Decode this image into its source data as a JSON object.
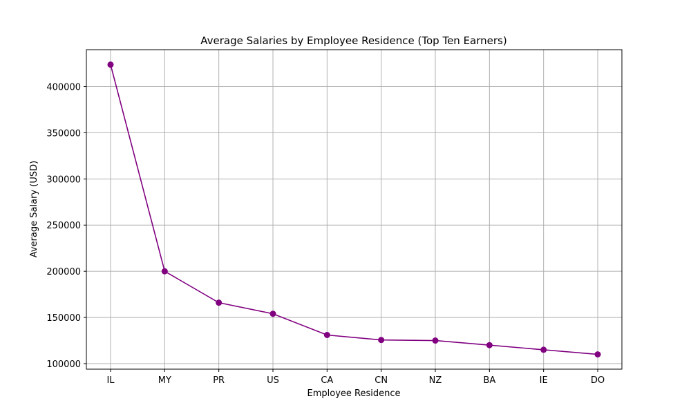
{
  "chart_data": {
    "type": "line",
    "title": "Average Salaries by Employee Residence (Top Ten Earners)",
    "xlabel": "Employee Residence",
    "ylabel": "Average Salary (USD)",
    "categories": [
      "IL",
      "MY",
      "PR",
      "US",
      "CA",
      "CN",
      "NZ",
      "BA",
      "IE",
      "DO"
    ],
    "series": [
      {
        "values": [
          423834,
          200000,
          166000,
          154000,
          131000,
          125600,
          125000,
          120000,
          115000,
          110000
        ],
        "color": "#800080",
        "marker": "circle"
      }
    ],
    "yticks": [
      100000,
      150000,
      200000,
      250000,
      300000,
      350000,
      400000
    ],
    "ytick_labels": [
      "100000",
      "150000",
      "200000",
      "250000",
      "300000",
      "350000",
      "400000"
    ],
    "ylim": [
      94000,
      440000
    ],
    "grid": true,
    "legend": false
  }
}
